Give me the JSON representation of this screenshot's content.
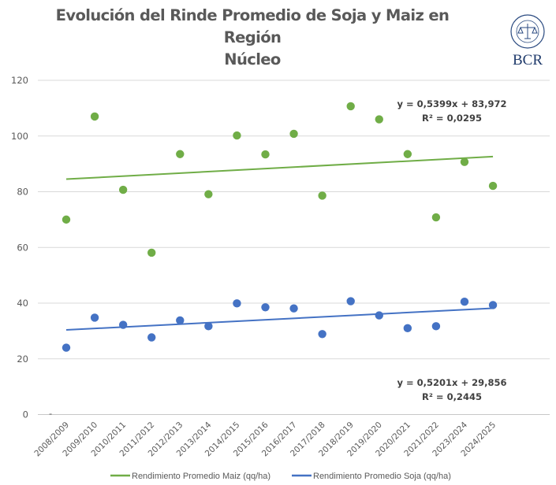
{
  "chart_data": {
    "type": "scatter",
    "title": "Evolución del Rinde Promedio de Soja y Maiz en Región Núcleo",
    "xlabel": "",
    "ylabel": "",
    "ylim": [
      0,
      120
    ],
    "yticks": [
      "0",
      "20",
      "40",
      "60",
      "80",
      "100",
      "120"
    ],
    "grid": true,
    "legend_position": "bottom",
    "categories": [
      "2008/2009",
      "2009/2010",
      "2010/2011",
      "2011/2012",
      "2012/2013",
      "2013/2014",
      "2014/2015",
      "2015/2016",
      "2016/2017",
      "2017/2018",
      "2018/2019",
      "2019/2020",
      "2020/2021",
      "2021/2022",
      "2023/2024",
      "2024/2025"
    ],
    "series": [
      {
        "name": "Rendimiento Promedio Maiz (qq/ha)",
        "color": "#70AD47",
        "values": [
          70,
          107,
          80.7,
          58.1,
          93.5,
          79.1,
          100.2,
          93.4,
          100.8,
          78.6,
          110.7,
          106,
          93.5,
          70.8,
          90.7,
          82.1
        ],
        "trendline": {
          "slope": 0.5399,
          "intercept": 83.972,
          "equation": "y = 0,5399x + 83,972",
          "r2": "R² = 0,0295",
          "color": "#70AD47"
        }
      },
      {
        "name": "Rendimiento Promedio Soja (qq/ha)",
        "color": "#4472C4",
        "values": [
          24,
          34.8,
          32.2,
          27.7,
          33.8,
          31.7,
          39.9,
          38.5,
          38.1,
          28.9,
          40.7,
          35.6,
          31,
          31.7,
          40.5,
          39.3
        ],
        "trendline": {
          "slope": 0.5201,
          "intercept": 29.856,
          "equation": "y = 0,5201x + 29,856",
          "r2": "R² = 0,2445",
          "color": "#4472C4"
        }
      }
    ],
    "axis_marker": "-"
  },
  "header": {
    "title_line1": "Evolución del Rinde Promedio de Soja y Maiz en Región",
    "title_line2": "Núcleo"
  },
  "logo": {
    "text": "BCR",
    "seal_text": "BOLSA DE COMERCIO DE ROSARIO",
    "color": "#1F3A6B"
  }
}
